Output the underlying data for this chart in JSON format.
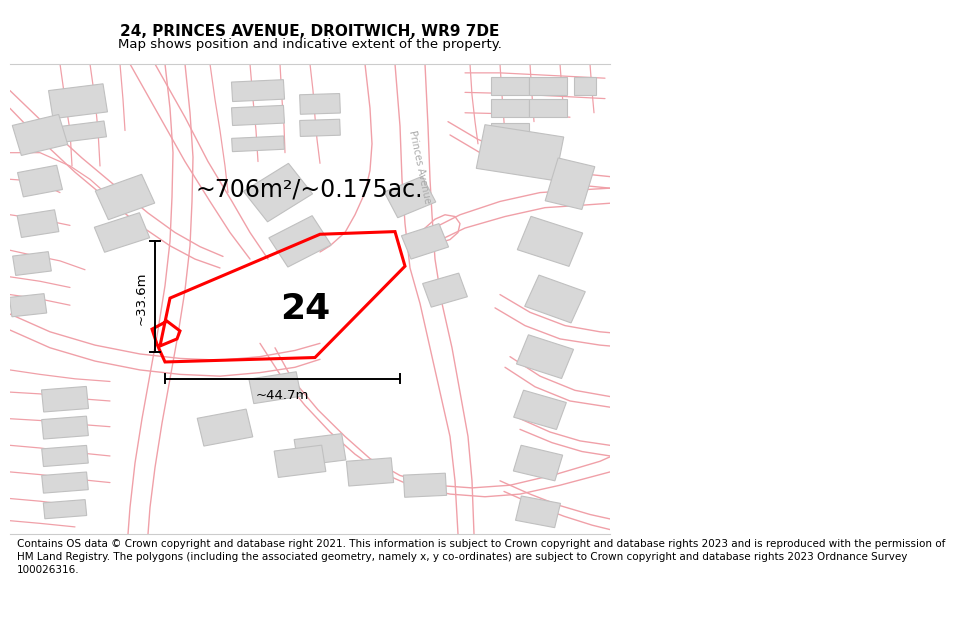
{
  "title": "24, PRINCES AVENUE, DROITWICH, WR9 7DE",
  "subtitle": "Map shows position and indicative extent of the property.",
  "footer": "Contains OS data © Crown copyright and database right 2021. This information is subject to Crown copyright and database rights 2023 and is reproduced with the permission of\nHM Land Registry. The polygons (including the associated geometry, namely x, y co-ordinates) are subject to Crown copyright and database rights 2023 Ordnance Survey\n100026316.",
  "area_text": "~706m²/~0.175ac.",
  "width_label": "~44.7m",
  "height_label": "~33.6m",
  "parcel_label": "24",
  "map_bg": "#fafafa",
  "road_color": "#f0a0a8",
  "building_fill": "#d8d8d8",
  "building_edge": "#c0c0c0",
  "title_fontsize": 11,
  "subtitle_fontsize": 9.5,
  "footer_fontsize": 7.5,
  "area_fontsize": 17,
  "parcel_fontsize": 26
}
